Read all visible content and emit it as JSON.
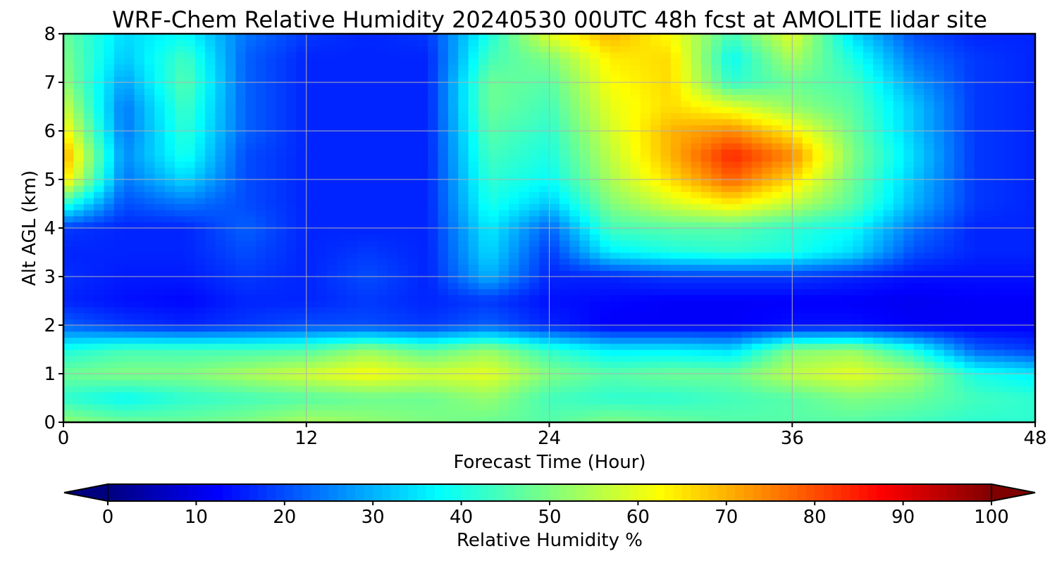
{
  "chart_data": {
    "type": "heatmap",
    "title": "WRF-Chem Relative Humidity 20240530 00UTC 48h fcst at AMOLITE lidar site",
    "xlabel": "Forecast Time (Hour)",
    "ylabel": "Alt AGL (km)",
    "xlim": [
      0,
      48
    ],
    "ylim": [
      0,
      8
    ],
    "x_ticks": [
      "0",
      "12",
      "24",
      "36",
      "48"
    ],
    "y_ticks": [
      "0",
      "1",
      "2",
      "3",
      "4",
      "5",
      "6",
      "7",
      "8"
    ],
    "grid": true,
    "colormap": "jet",
    "colorbar": {
      "label": "Relative Humidity %",
      "vmin": 0,
      "vmax": 100,
      "ticks": [
        "0",
        "10",
        "20",
        "30",
        "40",
        "50",
        "60",
        "70",
        "80",
        "90",
        "100"
      ],
      "extend": "both",
      "orientation": "horizontal",
      "under_color": "#00007f",
      "over_color": "#7f0000"
    },
    "x": [
      0,
      3,
      6,
      9,
      12,
      15,
      18,
      21,
      24,
      27,
      30,
      33,
      36,
      39,
      42,
      45,
      48
    ],
    "y": [
      0,
      0.5,
      1,
      1.5,
      2,
      2.5,
      3,
      3.5,
      4,
      4.5,
      5,
      5.5,
      6,
      6.5,
      7,
      7.5,
      8
    ],
    "z": [
      [
        52,
        48,
        48,
        50,
        54,
        52,
        50,
        48,
        46,
        50,
        48,
        46,
        46,
        46,
        44,
        42,
        42
      ],
      [
        42,
        38,
        42,
        44,
        46,
        48,
        48,
        52,
        44,
        42,
        42,
        44,
        46,
        50,
        48,
        44,
        42
      ],
      [
        48,
        50,
        50,
        54,
        58,
        62,
        58,
        60,
        50,
        46,
        48,
        48,
        56,
        60,
        54,
        40,
        36
      ],
      [
        40,
        44,
        44,
        44,
        45,
        52,
        46,
        52,
        42,
        36,
        36,
        34,
        50,
        52,
        40,
        22,
        18
      ],
      [
        22,
        18,
        16,
        18,
        20,
        20,
        18,
        22,
        16,
        12,
        12,
        12,
        14,
        14,
        12,
        12,
        12
      ],
      [
        16,
        14,
        13,
        16,
        16,
        18,
        16,
        18,
        14,
        13,
        12,
        12,
        12,
        12,
        11,
        12,
        12
      ],
      [
        17,
        15,
        15,
        18,
        16,
        20,
        16,
        30,
        16,
        16,
        18,
        18,
        18,
        16,
        14,
        14,
        14
      ],
      [
        16,
        16,
        16,
        20,
        16,
        18,
        16,
        34,
        18,
        36,
        40,
        42,
        40,
        34,
        20,
        16,
        16
      ],
      [
        18,
        16,
        16,
        22,
        16,
        16,
        16,
        36,
        22,
        44,
        46,
        46,
        42,
        38,
        24,
        16,
        16
      ],
      [
        42,
        20,
        24,
        20,
        16,
        16,
        16,
        40,
        32,
        50,
        58,
        64,
        56,
        46,
        30,
        18,
        16
      ],
      [
        66,
        24,
        34,
        20,
        16,
        16,
        16,
        42,
        38,
        54,
        66,
        78,
        66,
        48,
        32,
        18,
        16
      ],
      [
        72,
        26,
        40,
        20,
        16,
        16,
        16,
        44,
        40,
        56,
        70,
        84,
        74,
        50,
        34,
        18,
        16
      ],
      [
        64,
        24,
        42,
        22,
        16,
        16,
        16,
        46,
        42,
        58,
        70,
        74,
        64,
        48,
        32,
        18,
        16
      ],
      [
        58,
        24,
        44,
        22,
        16,
        16,
        16,
        48,
        44,
        60,
        66,
        60,
        52,
        46,
        32,
        18,
        16
      ],
      [
        52,
        28,
        46,
        22,
        16,
        16,
        16,
        48,
        46,
        62,
        66,
        42,
        48,
        44,
        28,
        18,
        16
      ],
      [
        50,
        32,
        44,
        22,
        16,
        16,
        16,
        44,
        50,
        64,
        66,
        38,
        54,
        40,
        24,
        18,
        16
      ],
      [
        48,
        34,
        38,
        24,
        18,
        16,
        18,
        40,
        60,
        70,
        62,
        44,
        60,
        34,
        20,
        16,
        16
      ]
    ]
  }
}
